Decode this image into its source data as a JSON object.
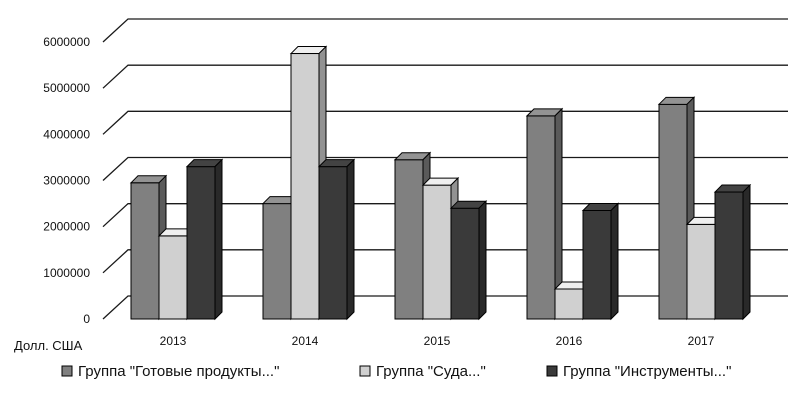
{
  "chart_data": {
    "type": "bar",
    "categories": [
      "2013",
      "2014",
      "2015",
      "2016",
      "2017"
    ],
    "series": [
      {
        "name": "Группа \"Готовые продукты...\"",
        "values": [
          2950000,
          2500000,
          3450000,
          4400000,
          4650000
        ],
        "color": "#808080"
      },
      {
        "name": "Группа \"Суда...\"",
        "values": [
          1800000,
          5750000,
          2900000,
          650000,
          2050000
        ],
        "color": "#d0d0d0"
      },
      {
        "name": "Группа \"Инструменты...\"",
        "values": [
          3300000,
          3300000,
          2400000,
          2350000,
          2750000
        ],
        "color": "#3a3a3a"
      }
    ],
    "ylim": [
      0,
      6000000
    ],
    "yticks": [
      0,
      1000000,
      2000000,
      3000000,
      4000000,
      5000000,
      6000000
    ],
    "ytick_labels": [
      "0",
      "1000000",
      "2000000",
      "3000000",
      "4000000",
      "5000000",
      "6000000"
    ],
    "unit_label": "Долл. США",
    "grid": true,
    "legend": "bottom",
    "style": "3d-clustered"
  }
}
